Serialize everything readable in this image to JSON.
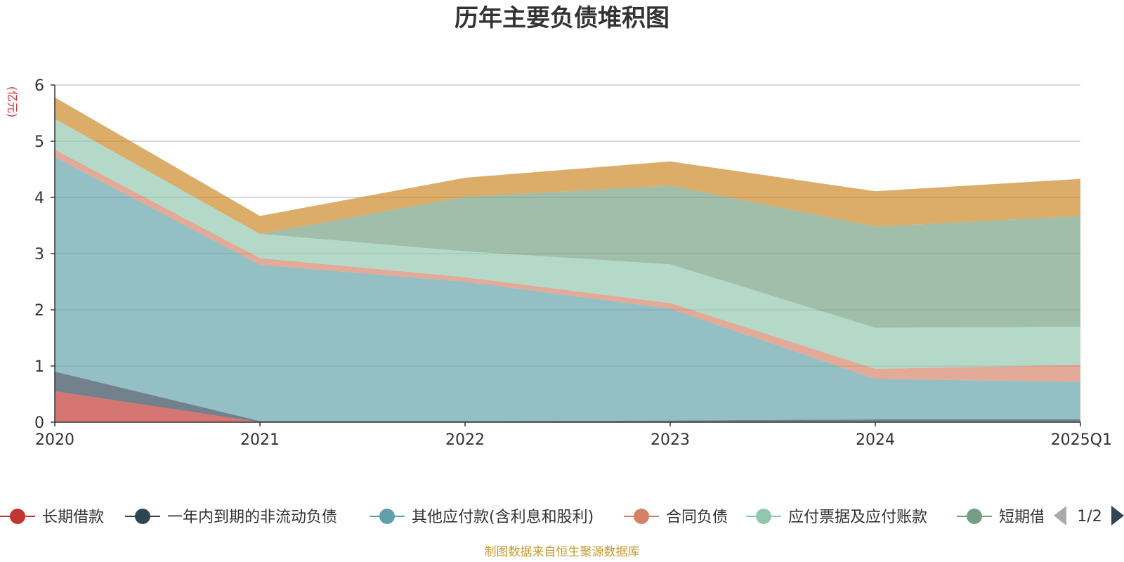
{
  "title": "历年主要负债堆积图",
  "unit_label": "(亿元)",
  "source_note": "制图数据来自恒生聚源数据库",
  "legend_page": "1/2",
  "chart_data": {
    "type": "area",
    "stacked": true,
    "title": "历年主要负债堆积图",
    "ylabel": "(亿元)",
    "xlabel": "",
    "categories": [
      "2020",
      "2021",
      "2022",
      "2023",
      "2024",
      "2025Q1"
    ],
    "ylim": [
      0,
      6
    ],
    "yticks": [
      0,
      1,
      2,
      3,
      4,
      5,
      6
    ],
    "grid": true,
    "legend_position": "bottom",
    "series": [
      {
        "name": "长期借款",
        "color": "#c23531",
        "values": [
          0.55,
          0,
          0,
          0,
          0,
          0
        ]
      },
      {
        "name": "一年内到期的非流动负债",
        "color": "#2f4554",
        "values": [
          0.35,
          0.02,
          0.02,
          0.03,
          0.05,
          0.05
        ]
      },
      {
        "name": "其他应付款(含利息和股利)",
        "color": "#61a0a8",
        "values": [
          3.82,
          2.78,
          2.48,
          1.99,
          0.72,
          0.67
        ]
      },
      {
        "name": "合同负债",
        "color": "#d48265",
        "values": [
          0.13,
          0.12,
          0.08,
          0.1,
          0.18,
          0.3
        ]
      },
      {
        "name": "应付票据及应付账款",
        "color": "#91c7ae",
        "values": [
          0.55,
          0.43,
          0.46,
          0.69,
          0.73,
          0.68
        ]
      },
      {
        "name": "短期借款",
        "color": "#749f83",
        "values": [
          0,
          0,
          0.97,
          1.4,
          1.8,
          1.97
        ]
      },
      {
        "name": "",
        "color": "#ca8622",
        "values": [
          0.38,
          0.32,
          0.34,
          0.43,
          0.63,
          0.66
        ]
      }
    ]
  },
  "legend": [
    {
      "label": "长期借款",
      "color": "#c23531",
      "icon": "circle-line-icon"
    },
    {
      "label": "一年内到期的非流动负债",
      "color": "#2f4554",
      "icon": "circle-line-icon"
    },
    {
      "label": "其他应付款(含利息和股利)",
      "color": "#61a0a8",
      "icon": "circle-line-icon"
    },
    {
      "label": "合同负债",
      "color": "#d48265",
      "icon": "circle-line-icon"
    },
    {
      "label": "应付票据及应付账款",
      "color": "#91c7ae",
      "icon": "circle-line-icon"
    },
    {
      "label": "短期借",
      "color": "#749f83",
      "icon": "circle-line-icon"
    }
  ]
}
